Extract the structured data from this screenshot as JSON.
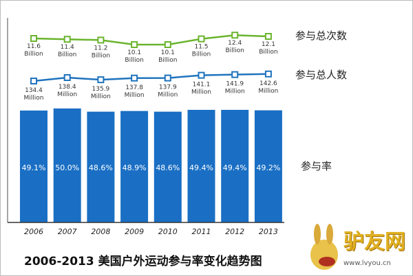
{
  "chart_data": [
    {
      "type": "bar",
      "title": "2006-2013 美国户外运动参与率变化趋势图",
      "legend_label": "参与率",
      "categories": [
        "2006",
        "2007",
        "2008",
        "2009",
        "2010",
        "2011",
        "2012",
        "2013"
      ],
      "values": [
        49.1,
        50.0,
        48.6,
        48.9,
        48.6,
        49.4,
        49.4,
        49.2
      ],
      "value_labels": [
        "49.1%",
        "50.0%",
        "48.6%",
        "48.9%",
        "48.6%",
        "49.4%",
        "49.4%",
        "49.2%"
      ],
      "ylim": [
        0,
        50
      ],
      "color": "#1a6fc4"
    },
    {
      "type": "line",
      "legend_label": "参与总次数",
      "categories": [
        "2006",
        "2007",
        "2008",
        "2009",
        "2010",
        "2011",
        "2012",
        "2013"
      ],
      "values": [
        11.6,
        11.4,
        11.2,
        10.1,
        10.1,
        11.5,
        12.4,
        12.1
      ],
      "unit": "Billion",
      "color": "#6ab42d"
    },
    {
      "type": "line",
      "legend_label": "参与总人数",
      "categories": [
        "2006",
        "2007",
        "2008",
        "2009",
        "2010",
        "2011",
        "2012",
        "2013"
      ],
      "values": [
        134.4,
        138.4,
        135.9,
        137.8,
        137.9,
        141.1,
        141.9,
        142.6
      ],
      "unit": "Million",
      "color": "#1e73be"
    }
  ],
  "logo": {
    "text": "驴友网",
    "sub": "www.lvyou.cn"
  }
}
